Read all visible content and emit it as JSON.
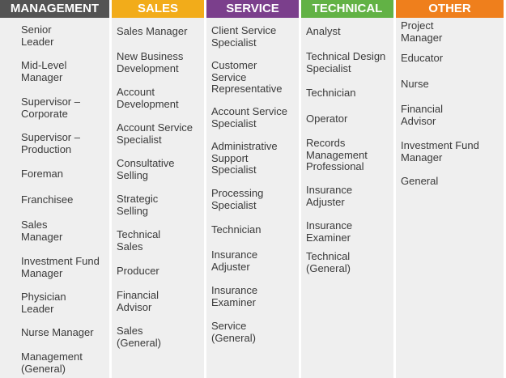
{
  "columns": [
    {
      "title": "MANAGEMENT",
      "color": "#535353",
      "items": [
        "Senior\nLeader",
        "Mid-Level\nManager",
        "Supervisor –\nCorporate",
        "Supervisor –\nProduction",
        "Foreman",
        "Franchisee",
        "Sales\nManager",
        "Investment Fund\nManager",
        "Physician\nLeader",
        "Nurse Manager",
        "Management\n(General)"
      ]
    },
    {
      "title": "SALES",
      "color": "#f2ac1a",
      "items": [
        "Sales Manager",
        "New Business\nDevelopment",
        "Account\nDevelopment",
        "Account Service\nSpecialist",
        "Consultative\nSelling",
        "Strategic\nSelling",
        "Technical\nSales",
        "Producer",
        "Financial\nAdvisor",
        "Sales\n(General)"
      ]
    },
    {
      "title": "SERVICE",
      "color": "#7b3f8c",
      "items": [
        "Client Service\nSpecialist",
        "Customer\nService\nRepresentative",
        "Account Service\nSpecialist",
        "Administrative\nSupport\nSpecialist",
        "Processing\nSpecialist",
        "Technician",
        "Insurance\nAdjuster",
        "Insurance\nExaminer",
        "Service\n(General)"
      ]
    },
    {
      "title": "TECHNICAL",
      "color": "#62b245",
      "items": [
        "Analyst",
        "Technical Design\nSpecialist",
        "Technician",
        "Operator",
        "Records\nManagement\nProfessional",
        "Insurance\nAdjuster",
        "Insurance\nExaminer",
        "Technical\n(General)"
      ]
    },
    {
      "title": "OTHER",
      "color": "#ef7f1c",
      "items": [
        "Project\nManager",
        "Educator",
        "Nurse",
        "Financial\nAdvisor",
        "Investment Fund\nManager",
        "General"
      ]
    }
  ]
}
